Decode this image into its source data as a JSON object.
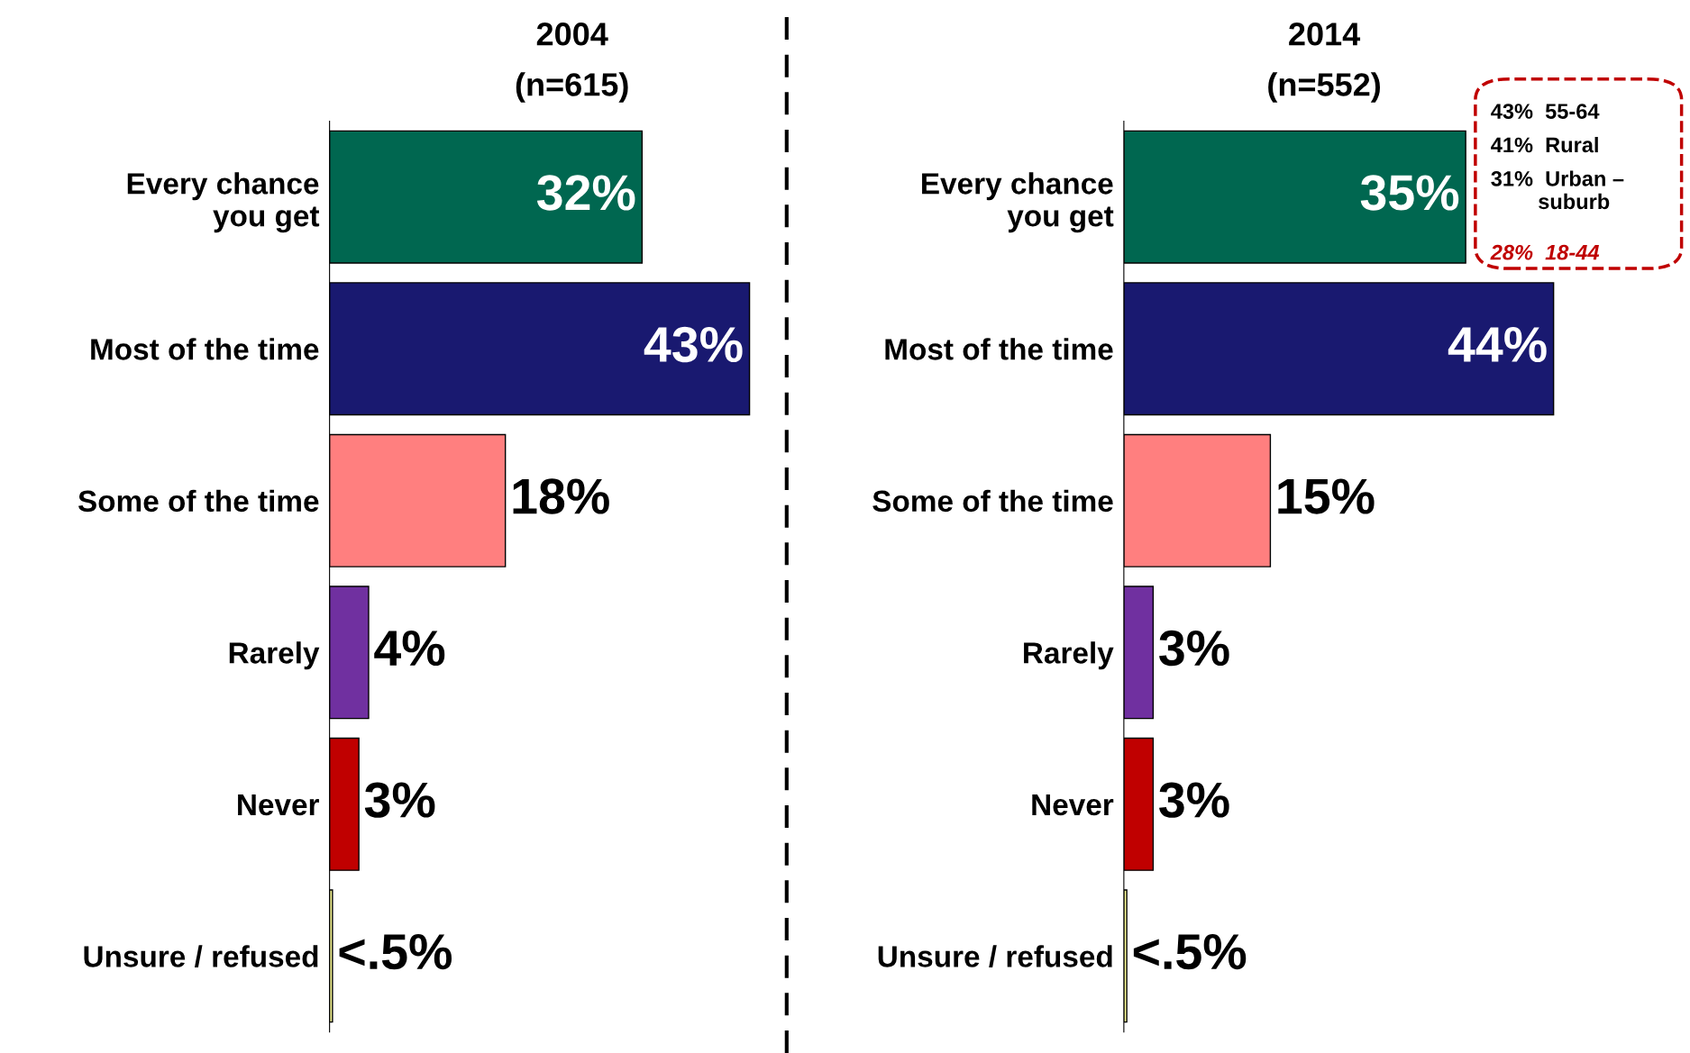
{
  "chart_data": [
    {
      "type": "bar",
      "orientation": "horizontal",
      "title": "2004",
      "subtitle": "(n=615)",
      "categories": [
        "Every chance\nyou get",
        "Most of the time",
        "Some of the time",
        "Rarely",
        "Never",
        "Unsure / refused"
      ],
      "values": [
        32,
        43,
        18,
        4,
        3,
        0.3
      ],
      "colors": [
        "#006750",
        "#191970",
        "#ff7f7f",
        "#7030a0",
        "#c00000",
        "#ffff99"
      ],
      "value_labels": [
        "32%",
        "43%",
        "18%",
        "4%",
        "3%",
        "<.5%"
      ],
      "grid": false,
      "legend": false
    },
    {
      "type": "bar",
      "orientation": "horizontal",
      "title": "2014",
      "subtitle": "(n=552)",
      "categories": [
        "Every chance\nyou get",
        "Most of the time",
        "Some of the time",
        "Rarely",
        "Never",
        "Unsure / refused"
      ],
      "values": [
        35,
        44,
        15,
        3,
        3,
        0.3
      ],
      "colors": [
        "#006750",
        "#191970",
        "#ff7f7f",
        "#7030a0",
        "#c00000",
        "#ffff99"
      ],
      "value_labels": [
        "35%",
        "44%",
        "15%",
        "3%",
        "3%",
        "<.5%"
      ],
      "grid": false,
      "legend": false,
      "annotations": [
        "43%  55-64",
        "41%  Rural",
        "31%  Urban –\n        suburb",
        "28%  18-44"
      ]
    }
  ]
}
